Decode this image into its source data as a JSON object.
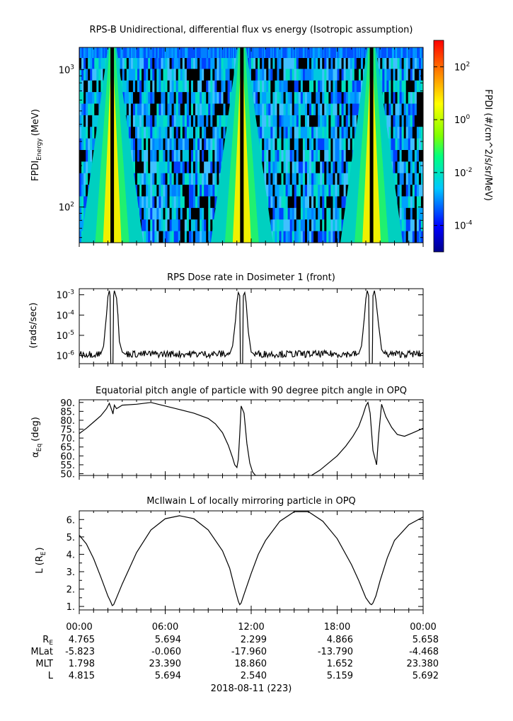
{
  "panels": [
    {
      "title": "RPS-B  Unidirectional, differential flux vs energy (Isotropic assumption)"
    },
    {
      "title": "RPS  Dose rate in Dosimeter 1 (front)"
    },
    {
      "title": "Equatorial pitch angle of particle with 90 degree pitch angle in OPQ"
    },
    {
      "title": "McIlwain L of locally mirroring particle in OPQ"
    }
  ],
  "chart_data": [
    {
      "type": "heatmap",
      "title": "RPS-B  Unidirectional, differential flux vs energy (Isotropic assumption)",
      "ylabel_main": "FPDI",
      "ylabel_sub": "Energy",
      "ylabel_unit": "(MeV)",
      "yscale": "log",
      "ylim": [
        55,
        1450
      ],
      "yticks": [
        {
          "value": 100,
          "base": "10",
          "exp": "2"
        },
        {
          "value": 1000,
          "base": "10",
          "exp": "3"
        }
      ],
      "xlim_hours": [
        0,
        24
      ],
      "flux_peaks_hours": [
        2.05,
        2.55,
        11.2,
        11.5,
        20.2,
        20.6
      ],
      "colorbar": {
        "label": "FPDI (#/cm^2/s/sr/MeV)",
        "scale": "log",
        "range": [
          1e-05,
          1000.0
        ],
        "ticks": [
          {
            "value": 0.0001,
            "base": "10",
            "exp": "-4"
          },
          {
            "value": 0.01,
            "base": "10",
            "exp": "-2"
          },
          {
            "value": 1,
            "base": "10",
            "exp": "0"
          },
          {
            "value": 100,
            "base": "10",
            "exp": "2"
          }
        ],
        "colors": [
          "#00008b",
          "#0000ff",
          "#00c8ff",
          "#00ff80",
          "#80ff00",
          "#ffff00",
          "#ff8000",
          "#ff0000"
        ]
      }
    },
    {
      "type": "line",
      "title": "RPS  Dose rate in Dosimeter 1 (front)",
      "ylabel": "(rads/sec)",
      "yscale": "log",
      "ylim": [
        4e-07,
        0.002
      ],
      "yticks": [
        {
          "value": 1e-06,
          "base": "10",
          "exp": "-6"
        },
        {
          "value": 1e-05,
          "base": "10",
          "exp": "-5"
        },
        {
          "value": 0.0001,
          "base": "10",
          "exp": "-4"
        },
        {
          "value": 0.001,
          "base": "10",
          "exp": "-3"
        }
      ],
      "x_hours": [
        0,
        1.5,
        1.7,
        1.9,
        2.0,
        2.1,
        2.15,
        2.2,
        2.35,
        2.4,
        2.45,
        2.6,
        2.7,
        2.8,
        3.0,
        3.2,
        10.5,
        10.7,
        10.9,
        11.0,
        11.1,
        11.2,
        11.25,
        11.4,
        11.45,
        11.55,
        11.65,
        11.8,
        12.0,
        12.2,
        19.5,
        19.7,
        19.9,
        20.0,
        20.1,
        20.2,
        20.25,
        20.45,
        20.5,
        20.6,
        20.7,
        20.9,
        21.1,
        21.3,
        24
      ],
      "values": [
        1.2e-06,
        1.2e-06,
        3e-06,
        0.0001,
        0.0008,
        0.0016,
        0.0009,
        4e-07,
        4e-07,
        0.0009,
        0.0016,
        0.0007,
        0.0001,
        5e-06,
        1.5e-06,
        1.2e-06,
        1.2e-06,
        3e-06,
        5e-05,
        0.0004,
        0.0013,
        0.0009,
        4e-07,
        4e-07,
        0.0009,
        0.0013,
        0.0004,
        1.5e-05,
        1.5e-06,
        1.2e-06,
        1.2e-06,
        3e-06,
        8e-05,
        0.0006,
        0.0016,
        0.0009,
        4e-07,
        4e-07,
        0.0009,
        0.0016,
        0.0006,
        3e-05,
        2e-06,
        1.2e-06,
        1.2e-06
      ]
    },
    {
      "type": "line",
      "title": "Equatorial pitch angle of particle with 90 degree pitch angle in OPQ",
      "ylabel_main": "α",
      "ylabel_sub": "Eq",
      "ylabel_unit": "(deg)",
      "ylim": [
        49,
        91.5
      ],
      "yticks": [
        50,
        55,
        60,
        65,
        70,
        75,
        80,
        85,
        90
      ],
      "ytick_labels": [
        "50.",
        "55.",
        "60.",
        "65.",
        "70.",
        "75.",
        "80.",
        "85.",
        "90."
      ],
      "x_hours": [
        0,
        0.5,
        1.0,
        1.5,
        1.9,
        2.1,
        2.3,
        2.35,
        2.45,
        2.6,
        3.0,
        4.0,
        5.0,
        6.0,
        7.0,
        8.0,
        9.0,
        9.5,
        10.0,
        10.4,
        10.7,
        10.85,
        11.0,
        11.1,
        11.2,
        11.3,
        11.5,
        11.7,
        11.9,
        12.1,
        12.3,
        16.2,
        16.8,
        17.4,
        18.0,
        18.6,
        19.1,
        19.5,
        19.8,
        20.0,
        20.15,
        20.3,
        20.5,
        20.75,
        20.9,
        21.1,
        21.4,
        21.8,
        22.2,
        22.7,
        23.3,
        24.0
      ],
      "values": [
        72.5,
        75.5,
        79,
        82.5,
        86.5,
        89.5,
        85,
        83.5,
        88.5,
        86.5,
        88.5,
        89,
        90,
        88,
        86,
        84,
        81,
        78,
        73,
        66,
        59,
        55,
        53.5,
        58,
        72,
        88,
        84,
        67,
        56,
        51,
        49,
        49,
        52,
        56,
        60,
        65.5,
        71,
        76.5,
        83,
        88,
        90,
        84,
        63,
        55,
        72,
        89,
        82,
        76,
        72,
        71,
        73,
        75.5
      ]
    },
    {
      "type": "line",
      "title": "McIlwain L of locally mirroring particle in OPQ",
      "ylabel_main": "L (R",
      "ylabel_sub": "E",
      "ylabel_unit": ")",
      "ylim": [
        0.8,
        6.5
      ],
      "yticks": [
        1,
        2,
        3,
        4,
        5,
        6
      ],
      "ytick_labels": [
        "1.",
        "2.",
        "3.",
        "4.",
        "5.",
        "6."
      ],
      "x_hours": [
        0,
        0.5,
        1.0,
        1.5,
        2.0,
        2.2,
        2.3,
        2.4,
        2.6,
        3.0,
        3.5,
        4.0,
        5.0,
        6.0,
        7.0,
        8.0,
        9.0,
        10.0,
        10.5,
        10.9,
        11.1,
        11.2,
        11.3,
        11.5,
        12.0,
        12.5,
        13.0,
        14.0,
        15.0,
        16.0,
        17.0,
        18.0,
        19.0,
        19.5,
        20.0,
        20.3,
        20.4,
        20.5,
        20.7,
        21.0,
        21.5,
        22.0,
        23.0,
        24.0
      ],
      "values": [
        5.1,
        4.6,
        3.75,
        2.7,
        1.6,
        1.25,
        1.05,
        1.1,
        1.5,
        2.3,
        3.2,
        4.1,
        5.4,
        6.05,
        6.22,
        6.05,
        5.4,
        4.2,
        3.2,
        1.9,
        1.3,
        1.1,
        1.2,
        1.7,
        2.9,
        4.0,
        4.8,
        5.9,
        6.45,
        6.45,
        5.9,
        4.9,
        3.4,
        2.5,
        1.5,
        1.15,
        1.1,
        1.2,
        1.6,
        2.5,
        3.8,
        4.8,
        5.7,
        6.15
      ]
    }
  ],
  "x_axis": {
    "time_ticks": [
      "00:00",
      "06:00",
      "12:00",
      "18:00",
      "00:00"
    ],
    "rows": [
      {
        "label": "R",
        "label_sub": "E",
        "values": [
          "4.765",
          "5.694",
          "2.299",
          "4.866",
          "5.658"
        ]
      },
      {
        "label": "MLat",
        "values": [
          "-5.823",
          "-0.060",
          "-17.960",
          "-13.790",
          "-4.468"
        ]
      },
      {
        "label": "MLT",
        "values": [
          "1.798",
          "23.390",
          "18.860",
          "1.652",
          "23.380"
        ]
      },
      {
        "label": "L",
        "values": [
          "4.815",
          "5.694",
          "2.540",
          "5.159",
          "5.692"
        ]
      }
    ],
    "date": "2018-08-11 (223)"
  }
}
